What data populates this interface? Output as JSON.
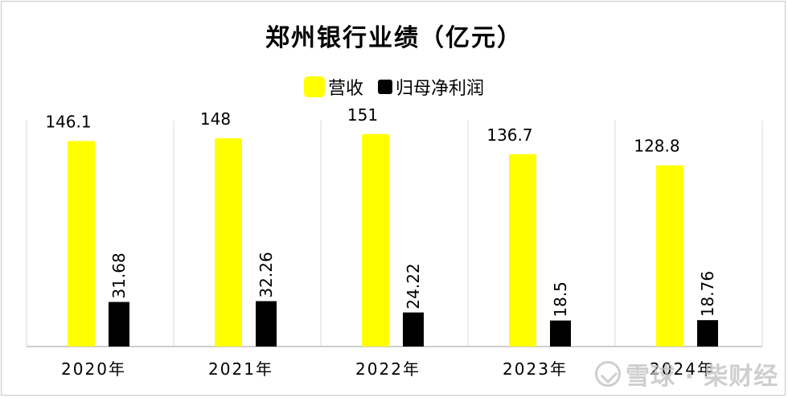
{
  "chart_data": {
    "type": "bar",
    "title": "郑州银行业绩（亿元）",
    "categories": [
      "2020年",
      "2021年",
      "2022年",
      "2023年",
      "2024年"
    ],
    "series": [
      {
        "name": "营收",
        "values": [
          146.1,
          148,
          151,
          136.7,
          128.8
        ],
        "labels": [
          "146.1",
          "148",
          "151",
          "136.7",
          "128.8"
        ],
        "color": "#ffff00"
      },
      {
        "name": "归母净利润",
        "values": [
          31.68,
          32.26,
          24.22,
          18.5,
          18.76
        ],
        "labels": [
          "31.68",
          "32.26",
          "24.22",
          "18.5",
          "18.76"
        ],
        "color": "#000000"
      }
    ],
    "ylim": [
      0,
      160
    ],
    "grid": "vertical separators between categories",
    "legend": "top-center"
  },
  "legend": {
    "revenue": "营收",
    "net_profit": "归母净利润"
  },
  "watermark": "雪球 · 柴财经",
  "colors": {
    "revenue": "#ffff00",
    "net_profit": "#000000",
    "grid": "#d9d9d9",
    "axis": "#bfbfbf"
  }
}
